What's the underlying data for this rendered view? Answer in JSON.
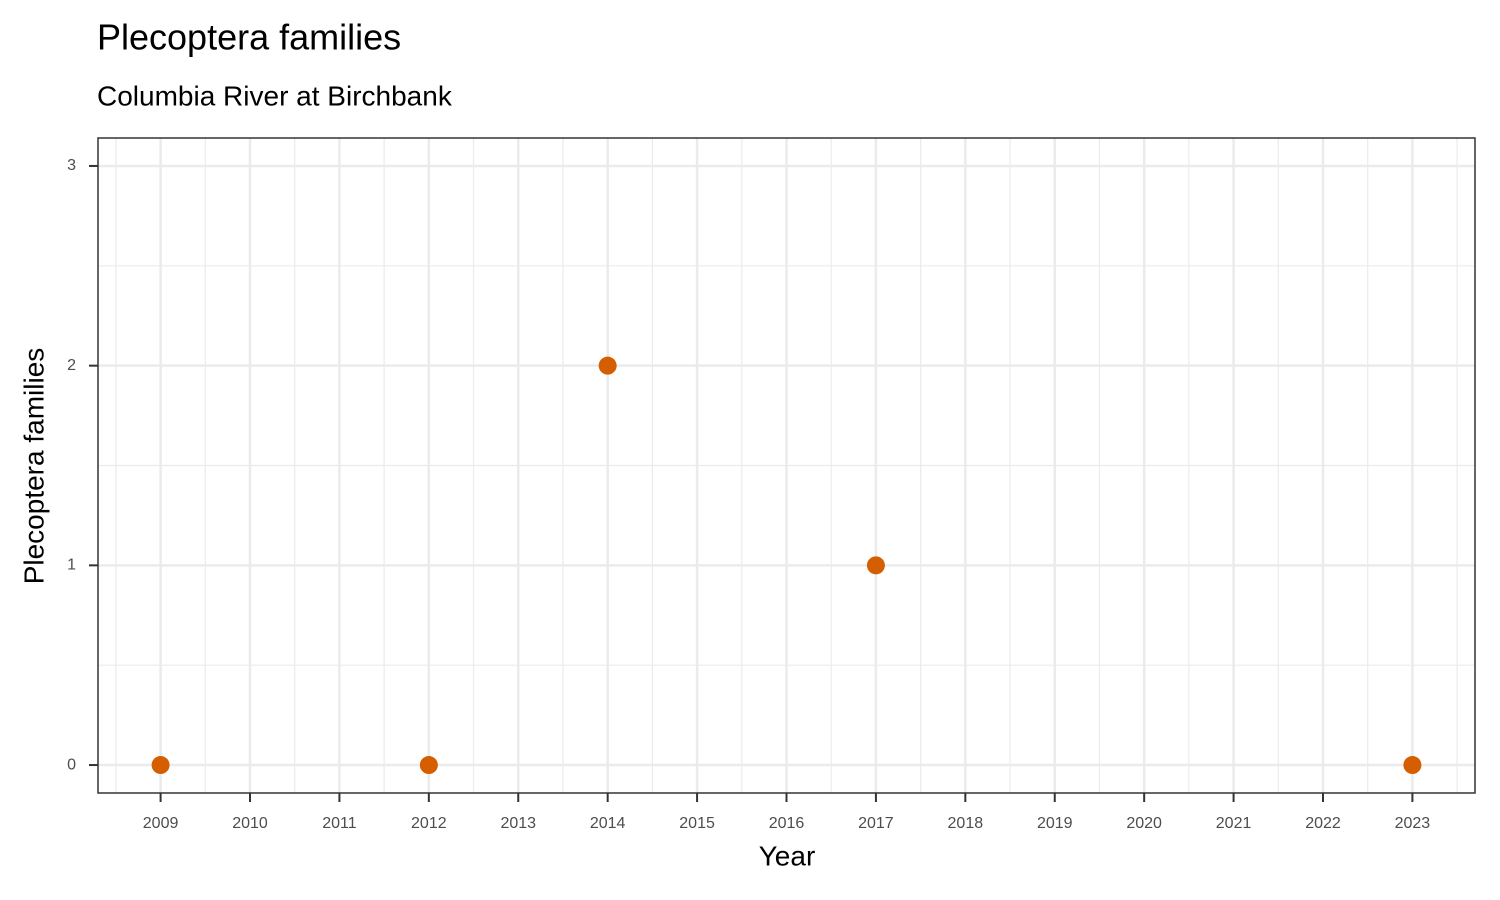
{
  "chart_data": {
    "type": "scatter",
    "title": "Plecoptera families",
    "subtitle": "Columbia River at Birchbank",
    "x_label": "Year",
    "y_label": "Plecoptera families",
    "series": [
      {
        "color": "#d55e00",
        "x": [
          2009,
          2012,
          2014,
          2017,
          2023
        ],
        "values": [
          0,
          0,
          2,
          1,
          0
        ]
      }
    ],
    "xlim": [
      2008.3,
      2023.7
    ],
    "ylim": [
      -0.14,
      3.14
    ],
    "xticks": [
      2009,
      2010,
      2011,
      2012,
      2013,
      2014,
      2015,
      2016,
      2017,
      2018,
      2019,
      2020,
      2021,
      2022,
      2023
    ],
    "yticks": [
      0,
      1,
      2,
      3
    ],
    "grid": true,
    "minor_grid": true
  }
}
